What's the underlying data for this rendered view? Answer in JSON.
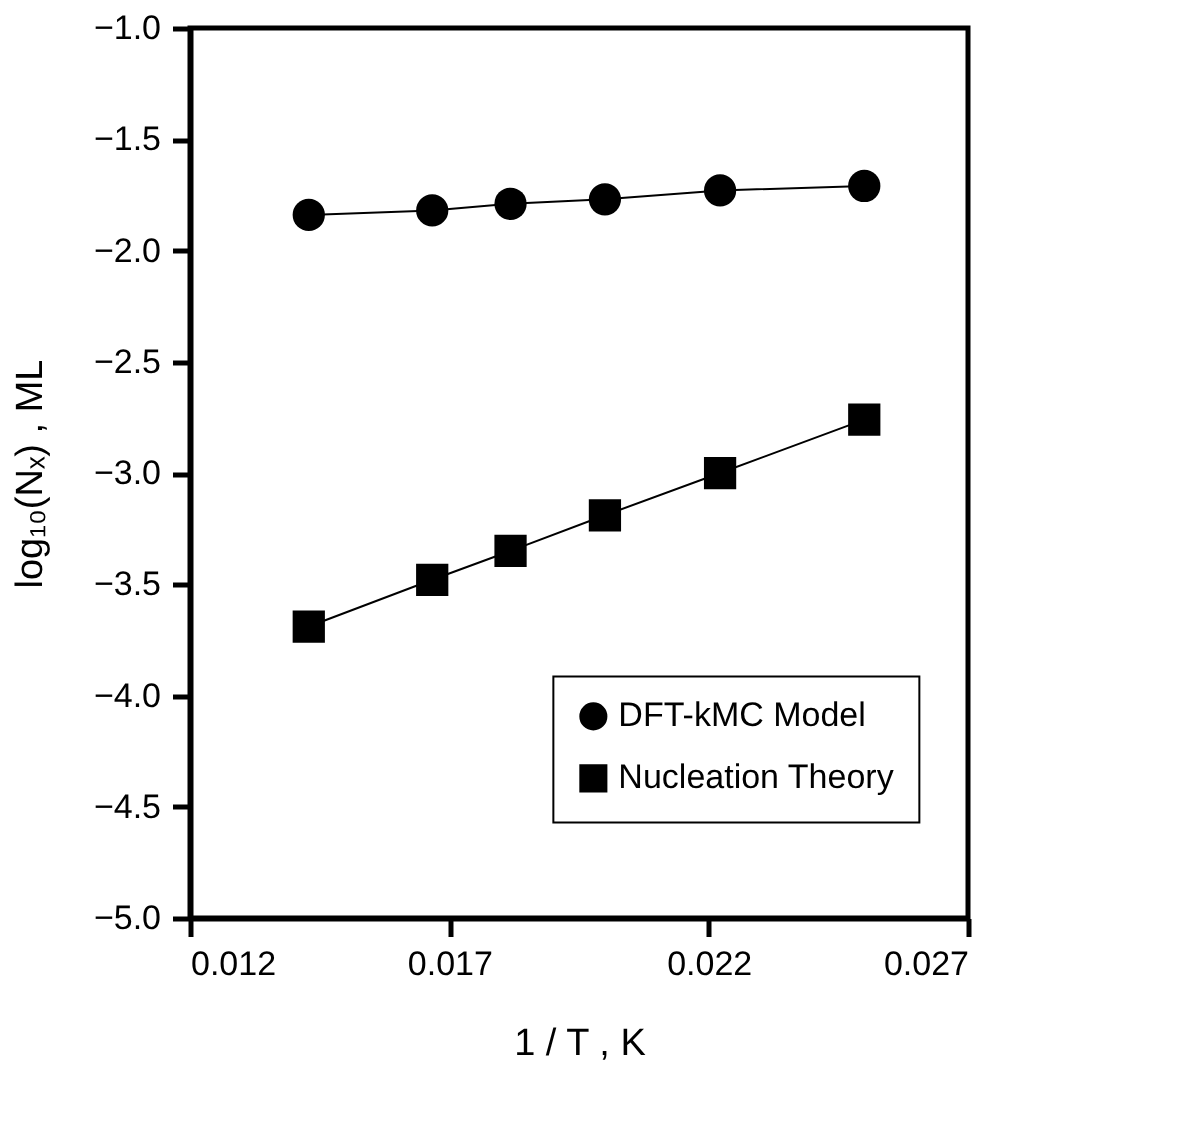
{
  "chart_data": {
    "type": "line",
    "xlabel": "1 / T , K",
    "ylabel": "log₁₀(Nₓ) , ML",
    "x": [
      0.01429,
      0.01667,
      0.01818,
      0.02,
      0.02222,
      0.025
    ],
    "series": [
      {
        "name": "DFT-kMC Model",
        "color": "#000000",
        "marker": "circle",
        "values": [
          -1.84,
          -1.82,
          -1.79,
          -1.77,
          -1.73,
          -1.71
        ]
      },
      {
        "name": "Nucleation Theory",
        "color": "#000000",
        "marker": "square",
        "values": [
          -3.69,
          -3.48,
          -3.35,
          -3.19,
          -3.0,
          -2.76
        ]
      }
    ],
    "xlim": [
      0.012,
      0.027
    ],
    "xticks": [
      0.012,
      0.017,
      0.022,
      0.027
    ],
    "ylim": [
      -5.0,
      -1.0
    ],
    "yticks": [
      {
        "value": -5.0,
        "label": "−5.0"
      },
      {
        "value": -4.5,
        "label": "−4.5"
      },
      {
        "value": -4.0,
        "label": "−4.0"
      },
      {
        "value": -3.5,
        "label": "−3.5"
      },
      {
        "value": -3.0,
        "label": "−3.0"
      },
      {
        "value": -2.5,
        "label": "−2.5"
      },
      {
        "value": -2.0,
        "label": "−2.0"
      },
      {
        "value": -1.5,
        "label": "−1.5"
      },
      {
        "value": -1.0,
        "label": "−1.0"
      }
    ],
    "grid": false,
    "legend": "bottom right",
    "line_style": "solid"
  }
}
